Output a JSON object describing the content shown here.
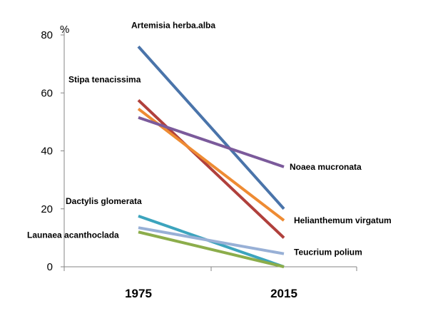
{
  "chart_data": {
    "type": "line",
    "unit_label": "%",
    "x": [
      "1975",
      "2015"
    ],
    "ylim": [
      0,
      80
    ],
    "yticks": [
      0,
      20,
      40,
      60,
      80
    ],
    "grid": false,
    "legend": "none",
    "series": [
      {
        "name": "Artemisia herba.alba",
        "values": [
          76,
          20
        ],
        "color": "#4a74aa"
      },
      {
        "name": "Stipa tenacissima",
        "values": [
          57.5,
          10
        ],
        "color": "#b0403c"
      },
      {
        "name": "Helianthemum virgatum",
        "values": [
          54.5,
          16
        ],
        "color": "#ee8b33"
      },
      {
        "name": "Noaea mucronata",
        "values": [
          51.5,
          34.5
        ],
        "color": "#7b5a9b"
      },
      {
        "name": "Dactylis glomerata",
        "values": [
          17.5,
          0
        ],
        "color": "#3ca4bd"
      },
      {
        "name": "Launaea acanthoclada",
        "values": [
          12,
          0
        ],
        "color": "#8cad4b"
      },
      {
        "name": "Teucrium polium",
        "values": [
          13.5,
          4.5
        ],
        "color": "#98b0d6"
      }
    ]
  }
}
